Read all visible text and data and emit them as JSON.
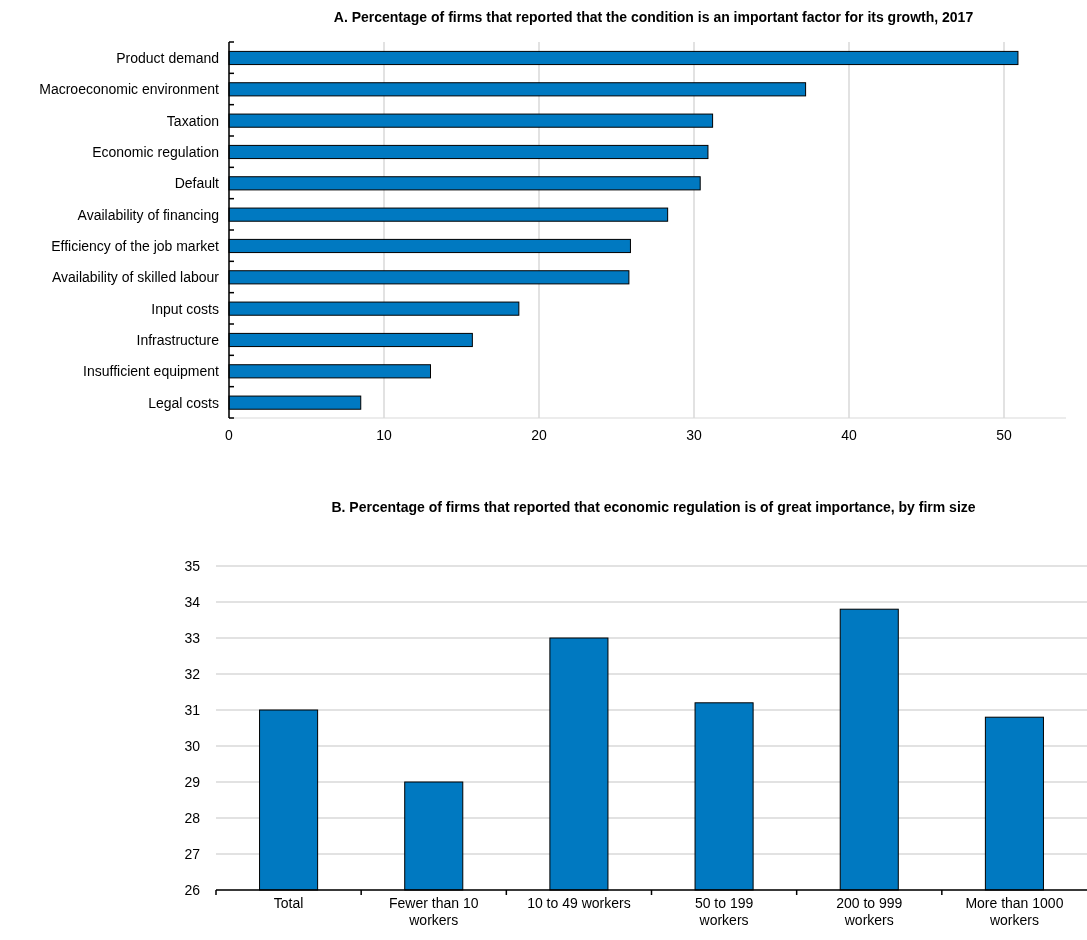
{
  "chart_data": [
    {
      "type": "bar",
      "orientation": "horizontal",
      "title": "A. Percentage of firms that reported that the condition is an important factor for its growth, 2017",
      "categories": [
        "Product demand",
        "Macroeconomic environment",
        "Taxation",
        "Economic regulation",
        "Default",
        "Availability of financing",
        "Efficiency of the job market",
        "Availability of skilled labour",
        "Input costs",
        "Infrastructure",
        "Insufficient equipment",
        "Legal costs"
      ],
      "values": [
        50.9,
        37.2,
        31.2,
        30.9,
        30.4,
        28.3,
        25.9,
        25.8,
        18.7,
        15.7,
        13.0,
        8.5
      ],
      "color": "#0079c1",
      "xlim": [
        0,
        54
      ],
      "xticks": [
        0,
        10,
        20,
        30,
        40,
        50
      ],
      "grid": "x"
    },
    {
      "type": "bar",
      "title": "B.  Percentage of firms that reported that economic regulation is of great importance, by firm size",
      "categories": [
        "Total",
        "Fewer than 10 workers",
        "10 to 49 workers",
        "50 to 199 workers",
        "200 to 999 workers",
        "More than 1000 workers"
      ],
      "values": [
        31.0,
        29.0,
        33.0,
        31.2,
        33.8,
        30.8
      ],
      "color": "#0079c1",
      "ylim": [
        26,
        35
      ],
      "yticks": [
        26,
        27,
        28,
        29,
        30,
        31,
        32,
        33,
        34,
        35
      ],
      "grid": "y"
    }
  ]
}
